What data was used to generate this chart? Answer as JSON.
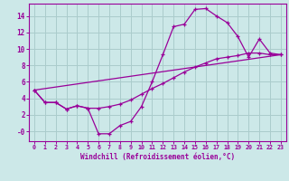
{
  "xlabel": "Windchill (Refroidissement éolien,°C)",
  "bg_color": "#cce8e8",
  "line_color": "#990099",
  "grid_color": "#aacccc",
  "xlim": [
    -0.5,
    23.5
  ],
  "ylim": [
    -1.2,
    15.5
  ],
  "xticks": [
    0,
    1,
    2,
    3,
    4,
    5,
    6,
    7,
    8,
    9,
    10,
    11,
    12,
    13,
    14,
    15,
    16,
    17,
    18,
    19,
    20,
    21,
    22,
    23
  ],
  "yticks": [
    0,
    2,
    4,
    6,
    8,
    10,
    12,
    14
  ],
  "ytick_labels": [
    "-0",
    "2",
    "4",
    "6",
    "8",
    "10",
    "12",
    "14"
  ],
  "line1_x": [
    0,
    1,
    2,
    3,
    4,
    5,
    6,
    7,
    8,
    9,
    10,
    11,
    12,
    13,
    14,
    15,
    16,
    17,
    18,
    19,
    20,
    21,
    22,
    23
  ],
  "line1_y": [
    5.0,
    3.5,
    3.5,
    2.7,
    3.1,
    2.8,
    -0.3,
    -0.3,
    0.7,
    1.2,
    3.0,
    6.0,
    9.3,
    12.7,
    13.0,
    14.8,
    14.9,
    14.0,
    13.2,
    11.5,
    9.0,
    11.2,
    9.5,
    9.3
  ],
  "line2_x": [
    0,
    1,
    2,
    3,
    4,
    5,
    6,
    7,
    8,
    9,
    10,
    11,
    12,
    13,
    14,
    15,
    16,
    17,
    18,
    19,
    20,
    21,
    22,
    23
  ],
  "line2_y": [
    5.0,
    3.5,
    3.5,
    2.7,
    3.1,
    2.8,
    2.8,
    3.0,
    3.3,
    3.8,
    4.5,
    5.2,
    5.8,
    6.5,
    7.2,
    7.8,
    8.3,
    8.8,
    9.0,
    9.2,
    9.5,
    9.5,
    9.3,
    9.3
  ],
  "line3_x": [
    0,
    23
  ],
  "line3_y": [
    5.0,
    9.3
  ]
}
